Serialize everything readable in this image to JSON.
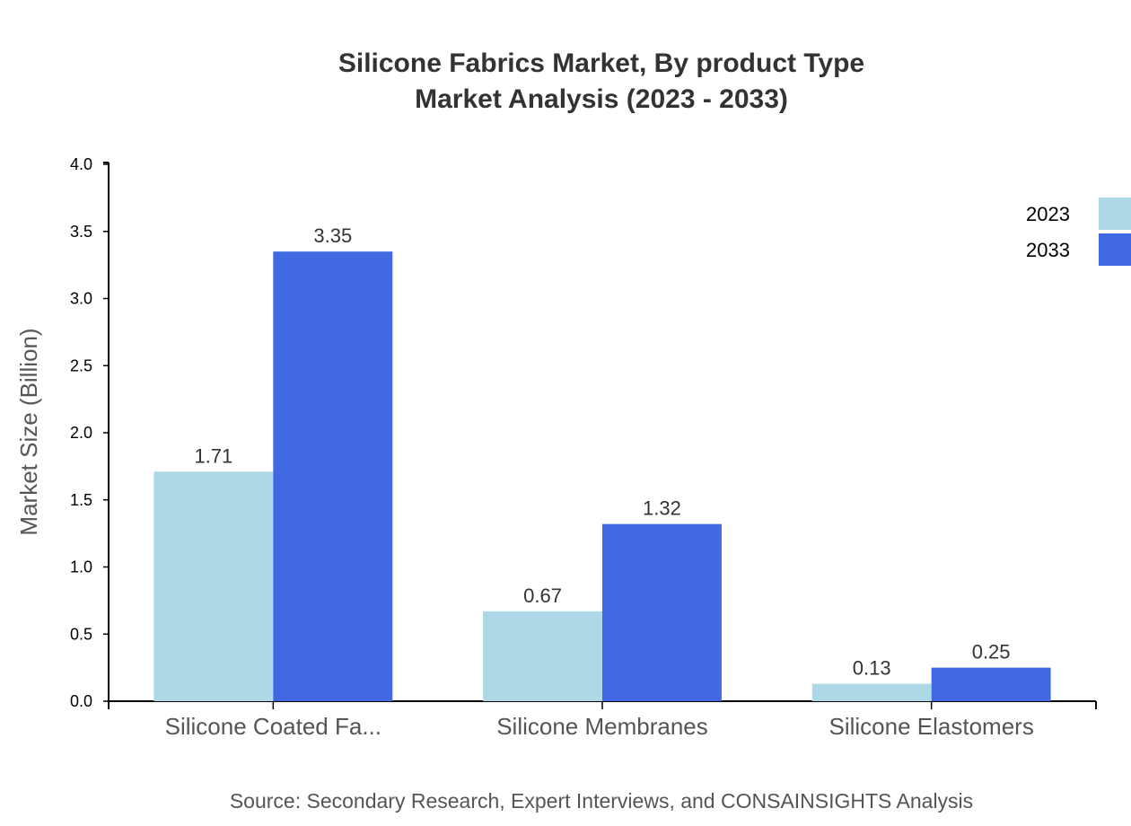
{
  "chart_data": {
    "type": "bar",
    "title": "Silicone Fabrics Market, By product Type",
    "subtitle": "Market Analysis (2023 - 2033)",
    "xlabel": "",
    "ylabel": "Market Size (Billion)",
    "ylim": [
      0,
      4.0
    ],
    "yticks": [
      "0.0",
      "0.5",
      "1.0",
      "1.5",
      "2.0",
      "2.5",
      "3.0",
      "3.5",
      "4.0"
    ],
    "categories": [
      "Silicone Coated Fa...",
      "Silicone Membranes",
      "Silicone Elastomers"
    ],
    "series": [
      {
        "name": "2023",
        "color": "#add8e6",
        "values": [
          1.71,
          0.67,
          0.13
        ]
      },
      {
        "name": "2033",
        "color": "#4169e1",
        "values": [
          3.35,
          1.32,
          0.25
        ]
      }
    ],
    "grid": false,
    "legend_position": "top-right",
    "source": "Source: Secondary Research, Expert Interviews, and CONSAINSIGHTS Analysis"
  }
}
